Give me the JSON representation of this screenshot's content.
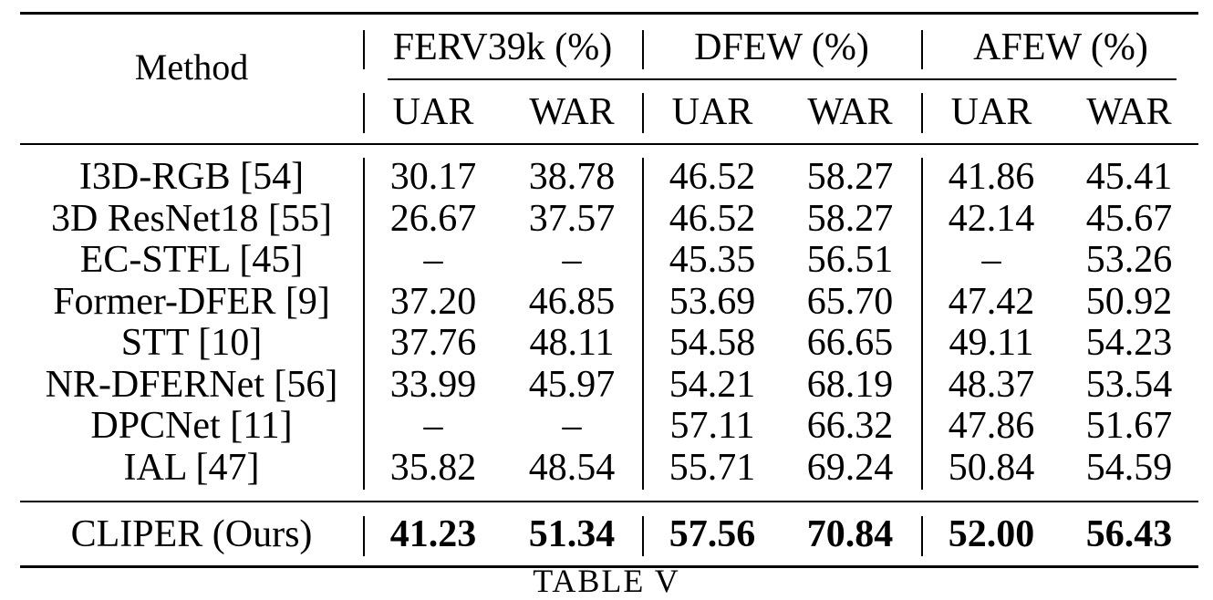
{
  "table": {
    "header": {
      "method": "Method",
      "groups": [
        "FERV39k (%)",
        "DFEW (%)",
        "AFEW (%)"
      ],
      "subcols": [
        "UAR",
        "WAR",
        "UAR",
        "WAR",
        "UAR",
        "WAR"
      ]
    },
    "rows": [
      {
        "method": "I3D-RGB [54]",
        "values": [
          "30.17",
          "38.78",
          "46.52",
          "58.27",
          "41.86",
          "45.41"
        ]
      },
      {
        "method": "3D ResNet18 [55]",
        "values": [
          "26.67",
          "37.57",
          "46.52",
          "58.27",
          "42.14",
          "45.67"
        ]
      },
      {
        "method": "EC-STFL [45]",
        "values": [
          "–",
          "–",
          "45.35",
          "56.51",
          "–",
          "53.26"
        ]
      },
      {
        "method": "Former-DFER [9]",
        "values": [
          "37.20",
          "46.85",
          "53.69",
          "65.70",
          "47.42",
          "50.92"
        ]
      },
      {
        "method": "STT [10]",
        "values": [
          "37.76",
          "48.11",
          "54.58",
          "66.65",
          "49.11",
          "54.23"
        ]
      },
      {
        "method": "NR-DFERNet [56]",
        "values": [
          "33.99",
          "45.97",
          "54.21",
          "68.19",
          "48.37",
          "53.54"
        ]
      },
      {
        "method": "DPCNet [11]",
        "values": [
          "–",
          "–",
          "57.11",
          "66.32",
          "47.86",
          "51.67"
        ]
      },
      {
        "method": "IAL [47]",
        "values": [
          "35.82",
          "48.54",
          "55.71",
          "69.24",
          "50.84",
          "54.59"
        ]
      }
    ],
    "ours": {
      "method": "CLIPER (Ours)",
      "values": [
        "41.23",
        "51.34",
        "57.56",
        "70.84",
        "52.00",
        "56.43"
      ]
    }
  },
  "caption": "TABLE V"
}
